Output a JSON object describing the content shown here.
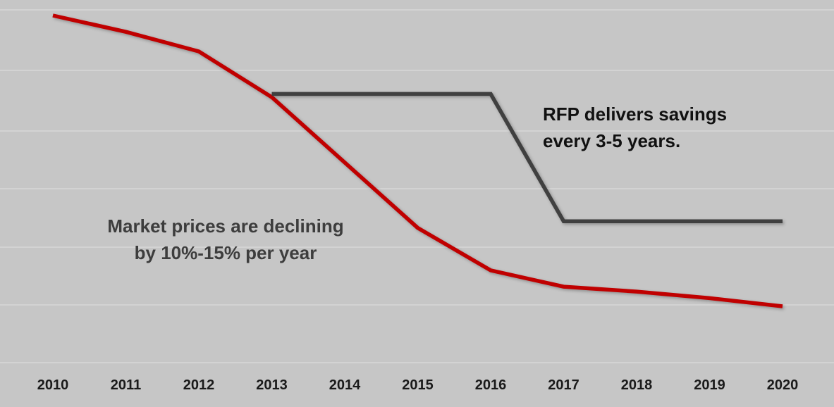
{
  "chart_data": {
    "type": "line",
    "title": "",
    "xlabel": "",
    "ylabel": "",
    "x": [
      2010,
      2011,
      2012,
      2013,
      2014,
      2015,
      2016,
      2017,
      2018,
      2019,
      2020
    ],
    "ylim": [
      0,
      100
    ],
    "grid": true,
    "legend": "none",
    "series": [
      {
        "name": "market-price-line",
        "color": "#c00000",
        "values": [
          100,
          95,
          89,
          75,
          55,
          35,
          22,
          17,
          15.5,
          13.5,
          11
        ]
      },
      {
        "name": "rfp-price-line",
        "color": "#404040",
        "values": [
          null,
          null,
          null,
          76,
          76,
          76,
          76,
          37,
          37,
          37,
          37
        ]
      }
    ],
    "annotations": {
      "market": {
        "text": "Market prices are declining\nby 10%-15% per year"
      },
      "rfp": {
        "text": "RFP delivers savings\nevery 3-5 years."
      }
    }
  }
}
